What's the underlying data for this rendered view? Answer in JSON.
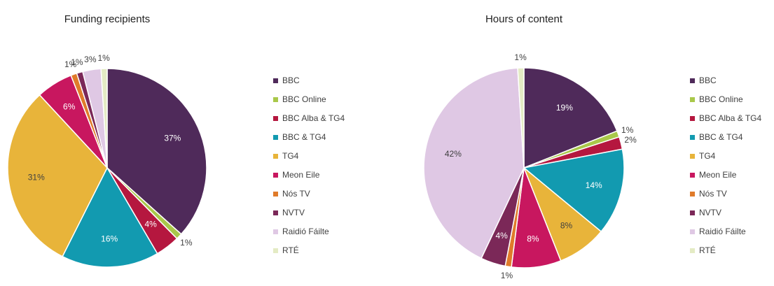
{
  "chart_data": [
    {
      "type": "pie",
      "title": "Funding recipients",
      "categories": [
        "BBC",
        "BBC Online",
        "BBC Alba & TG4",
        "BBC & TG4",
        "TG4",
        "Meon Eile",
        "Nós TV",
        "NVTV",
        "Raidió Fáilte",
        "RTÉ"
      ],
      "values": [
        37,
        1,
        4,
        16,
        31,
        6,
        1,
        1,
        3,
        1
      ],
      "value_labels": [
        "37%",
        "1%",
        "4%",
        "16%",
        "31%",
        "6%",
        "1%",
        "1%",
        "3%",
        "1%"
      ],
      "colors": [
        "#4f2a5a",
        "#a9c84a",
        "#b5173f",
        "#129ab0",
        "#e8b43a",
        "#c8175f",
        "#e07b2a",
        "#7b2858",
        "#dfc8e4",
        "#e4ebc4"
      ]
    },
    {
      "type": "pie",
      "title": "Hours of content",
      "categories": [
        "BBC",
        "BBC Online",
        "BBC Alba & TG4",
        "BBC & TG4",
        "TG4",
        "Meon Eile",
        "Nós TV",
        "NVTV",
        "Raidió Fáilte",
        "RTÉ"
      ],
      "values": [
        19,
        1,
        2,
        14,
        8,
        8,
        1,
        4,
        42,
        1
      ],
      "value_labels": [
        "19%",
        "1%",
        "2%",
        "14%",
        "8%",
        "8%",
        "1%",
        "4%",
        "42%",
        "1%"
      ],
      "colors": [
        "#4f2a5a",
        "#a9c84a",
        "#b5173f",
        "#129ab0",
        "#e8b43a",
        "#c8175f",
        "#e07b2a",
        "#7b2858",
        "#dfc8e4",
        "#e4ebc4"
      ]
    }
  ]
}
